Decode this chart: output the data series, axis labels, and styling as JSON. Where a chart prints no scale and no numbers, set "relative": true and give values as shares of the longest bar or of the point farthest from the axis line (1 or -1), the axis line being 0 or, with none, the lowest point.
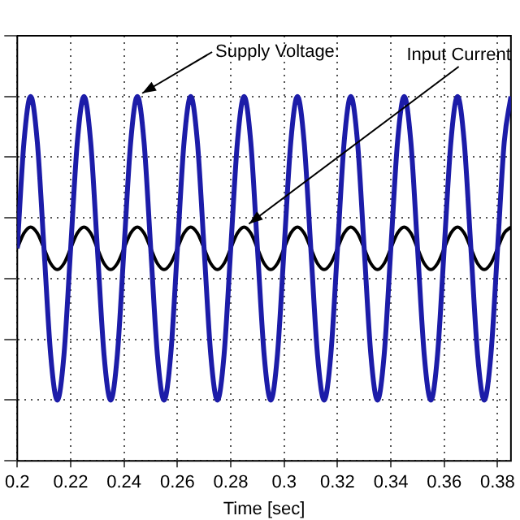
{
  "chart_data": {
    "type": "line",
    "relative": true,
    "xlabel": "Time [sec]",
    "x": [
      0.2,
      0.2025,
      0.205,
      0.2075,
      0.21,
      0.2125,
      0.215,
      0.2175,
      0.22,
      0.2225,
      0.225,
      0.2275,
      0.23,
      0.2325,
      0.235,
      0.2375,
      0.24,
      0.2425,
      0.245,
      0.2475,
      0.25,
      0.2525,
      0.255,
      0.2575,
      0.26,
      0.2625,
      0.265,
      0.2675,
      0.27,
      0.2725,
      0.275,
      0.2775,
      0.28,
      0.2825,
      0.285,
      0.2875,
      0.29,
      0.2925,
      0.295,
      0.2975,
      0.3,
      0.3025,
      0.305,
      0.3075,
      0.31,
      0.3125,
      0.315,
      0.3175,
      0.32,
      0.3225,
      0.325,
      0.3275,
      0.33,
      0.3325,
      0.335,
      0.3375,
      0.34,
      0.3425,
      0.345,
      0.3475,
      0.35,
      0.3525,
      0.355,
      0.3575,
      0.36,
      0.3625,
      0.365,
      0.3675,
      0.37,
      0.3725,
      0.375,
      0.3775,
      0.38,
      0.3825,
      0.385
    ],
    "series": [
      {
        "color": "#1c1ca8",
        "values": [
          0.5,
          0.85,
          1,
          0.85,
          0.5,
          0.15,
          0,
          0.15,
          0.5,
          0.85,
          1,
          0.85,
          0.5,
          0.15,
          0,
          0.15,
          0.5,
          0.85,
          1,
          0.85,
          0.5,
          0.15,
          0,
          0.15,
          0.5,
          0.85,
          1,
          0.85,
          0.5,
          0.15,
          0,
          0.15,
          0.5,
          0.85,
          1,
          0.85,
          0.5,
          0.15,
          0,
          0.15,
          0.5,
          0.85,
          1,
          0.85,
          0.5,
          0.15,
          0,
          0.15,
          0.5,
          0.85,
          1,
          0.85,
          0.5,
          0.15,
          0,
          0.15,
          0.5,
          0.85,
          1,
          0.85,
          0.5,
          0.15,
          0,
          0.15,
          0.5,
          0.85,
          1,
          0.85,
          0.5,
          0.15,
          0,
          0.15,
          0.5,
          0.85,
          1
        ]
      },
      {
        "color": "#000000",
        "values": [
          0.5,
          0.55,
          0.57,
          0.55,
          0.5,
          0.45,
          0.43,
          0.45,
          0.5,
          0.55,
          0.57,
          0.55,
          0.5,
          0.45,
          0.43,
          0.45,
          0.5,
          0.55,
          0.57,
          0.55,
          0.5,
          0.45,
          0.43,
          0.45,
          0.5,
          0.55,
          0.57,
          0.55,
          0.5,
          0.45,
          0.43,
          0.45,
          0.5,
          0.55,
          0.57,
          0.55,
          0.5,
          0.45,
          0.43,
          0.45,
          0.5,
          0.55,
          0.57,
          0.55,
          0.5,
          0.45,
          0.43,
          0.45,
          0.5,
          0.55,
          0.57,
          0.55,
          0.5,
          0.45,
          0.43,
          0.45,
          0.5,
          0.55,
          0.57,
          0.55,
          0.5,
          0.45,
          0.43,
          0.45,
          0.5,
          0.55,
          0.57,
          0.55,
          0.5,
          0.45,
          0.43,
          0.45,
          0.5,
          0.55,
          0.57
        ]
      }
    ],
    "xlim": [
      0.2,
      0.385
    ],
    "xticks": [
      0.2,
      0.22,
      0.24,
      0.26,
      0.28,
      0.3,
      0.32,
      0.34,
      0.36,
      0.38
    ],
    "annotations": [
      {
        "text": "Supply Voltage:",
        "x": 0.245,
        "y": 1
      },
      {
        "text": "Input Current",
        "x": 0.285,
        "y": 0.57
      }
    ],
    "grid": true,
    "legend": false,
    "marker": "none",
    "line_style": "solid"
  }
}
